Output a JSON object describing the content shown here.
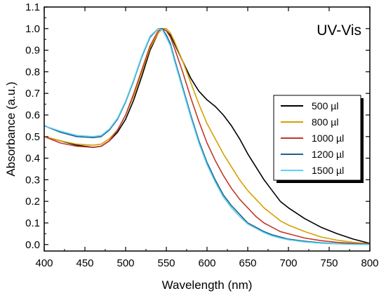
{
  "chart_data": {
    "type": "line",
    "title": "UV-Vis",
    "xlabel": "Wavelength (nm)",
    "ylabel": "Absorbance (a.u.)",
    "xlim": [
      400,
      800
    ],
    "ylim": [
      -0.03,
      1.1
    ],
    "xticks": [
      400,
      450,
      500,
      550,
      600,
      650,
      700,
      750,
      800
    ],
    "yticks": [
      0.0,
      0.1,
      0.2,
      0.3,
      0.4,
      0.5,
      0.6,
      0.7,
      0.8,
      0.9,
      1.0,
      1.1
    ],
    "ytick_labels": [
      "0.0",
      "0.1",
      "0.2",
      "0.3",
      "0.4",
      "0.5",
      "0.6",
      "0.7",
      "0.8",
      "0.9",
      "1.0",
      "1.1"
    ],
    "grid": false,
    "legend_position": "center-right",
    "series": [
      {
        "name": "500 µl",
        "color": "#000000",
        "x": [
          400,
          420,
          440,
          460,
          470,
          480,
          490,
          500,
          510,
          520,
          530,
          540,
          545,
          550,
          555,
          560,
          570,
          580,
          590,
          600,
          610,
          620,
          630,
          640,
          650,
          660,
          670,
          680,
          690,
          700,
          720,
          740,
          760,
          780,
          800
        ],
        "y": [
          0.5,
          0.48,
          0.46,
          0.45,
          0.455,
          0.48,
          0.52,
          0.58,
          0.67,
          0.78,
          0.9,
          0.98,
          1.0,
          0.99,
          0.97,
          0.93,
          0.85,
          0.77,
          0.71,
          0.67,
          0.64,
          0.6,
          0.55,
          0.49,
          0.42,
          0.36,
          0.3,
          0.25,
          0.2,
          0.17,
          0.12,
          0.08,
          0.05,
          0.025,
          0.005
        ]
      },
      {
        "name": "800 µl",
        "color": "#d4a000",
        "x": [
          400,
          420,
          440,
          460,
          470,
          480,
          490,
          500,
          510,
          520,
          530,
          540,
          545,
          550,
          555,
          560,
          570,
          580,
          590,
          600,
          610,
          620,
          630,
          640,
          650,
          660,
          670,
          680,
          690,
          700,
          720,
          740,
          760,
          780,
          800
        ],
        "y": [
          0.5,
          0.48,
          0.465,
          0.46,
          0.465,
          0.49,
          0.53,
          0.6,
          0.69,
          0.8,
          0.91,
          0.98,
          1.0,
          1.0,
          0.98,
          0.94,
          0.85,
          0.75,
          0.65,
          0.56,
          0.49,
          0.42,
          0.36,
          0.3,
          0.25,
          0.21,
          0.17,
          0.14,
          0.11,
          0.09,
          0.06,
          0.035,
          0.02,
          0.01,
          0.003
        ]
      },
      {
        "name": "1000 µl",
        "color": "#c0392b",
        "x": [
          400,
          420,
          440,
          460,
          470,
          480,
          490,
          500,
          510,
          520,
          530,
          540,
          545,
          550,
          555,
          560,
          570,
          580,
          590,
          600,
          610,
          620,
          630,
          640,
          650,
          660,
          670,
          680,
          690,
          700,
          720,
          740,
          760,
          780,
          800
        ],
        "y": [
          0.5,
          0.47,
          0.455,
          0.45,
          0.455,
          0.48,
          0.53,
          0.6,
          0.7,
          0.81,
          0.92,
          0.99,
          1.0,
          0.99,
          0.96,
          0.91,
          0.8,
          0.68,
          0.57,
          0.47,
          0.39,
          0.32,
          0.26,
          0.21,
          0.17,
          0.13,
          0.1,
          0.08,
          0.06,
          0.05,
          0.03,
          0.018,
          0.01,
          0.005,
          0.002
        ]
      },
      {
        "name": "1200 µl",
        "color": "#1f5f8b",
        "x": [
          400,
          420,
          440,
          460,
          470,
          480,
          490,
          500,
          510,
          520,
          530,
          540,
          545,
          550,
          555,
          560,
          570,
          580,
          590,
          600,
          610,
          620,
          630,
          640,
          650,
          660,
          670,
          680,
          690,
          700,
          720,
          740,
          760,
          780,
          800
        ],
        "y": [
          0.55,
          0.52,
          0.5,
          0.495,
          0.5,
          0.53,
          0.58,
          0.66,
          0.76,
          0.87,
          0.96,
          1.0,
          1.0,
          0.97,
          0.93,
          0.86,
          0.73,
          0.6,
          0.48,
          0.38,
          0.3,
          0.23,
          0.18,
          0.14,
          0.1,
          0.08,
          0.06,
          0.045,
          0.035,
          0.025,
          0.015,
          0.008,
          0.004,
          0.002,
          0.0
        ]
      },
      {
        "name": "1500 µl",
        "color": "#5ad2f0",
        "x": [
          400,
          420,
          440,
          460,
          470,
          480,
          490,
          500,
          510,
          520,
          530,
          540,
          545,
          550,
          555,
          560,
          570,
          580,
          590,
          600,
          610,
          620,
          630,
          640,
          650,
          660,
          670,
          680,
          690,
          700,
          720,
          740,
          760,
          780,
          800
        ],
        "y": [
          0.55,
          0.525,
          0.505,
          0.5,
          0.505,
          0.535,
          0.585,
          0.665,
          0.765,
          0.875,
          0.965,
          1.0,
          0.995,
          0.96,
          0.92,
          0.85,
          0.72,
          0.59,
          0.47,
          0.37,
          0.29,
          0.22,
          0.17,
          0.13,
          0.095,
          0.075,
          0.055,
          0.04,
          0.03,
          0.022,
          0.012,
          0.006,
          0.003,
          0.001,
          0.0
        ]
      }
    ]
  }
}
